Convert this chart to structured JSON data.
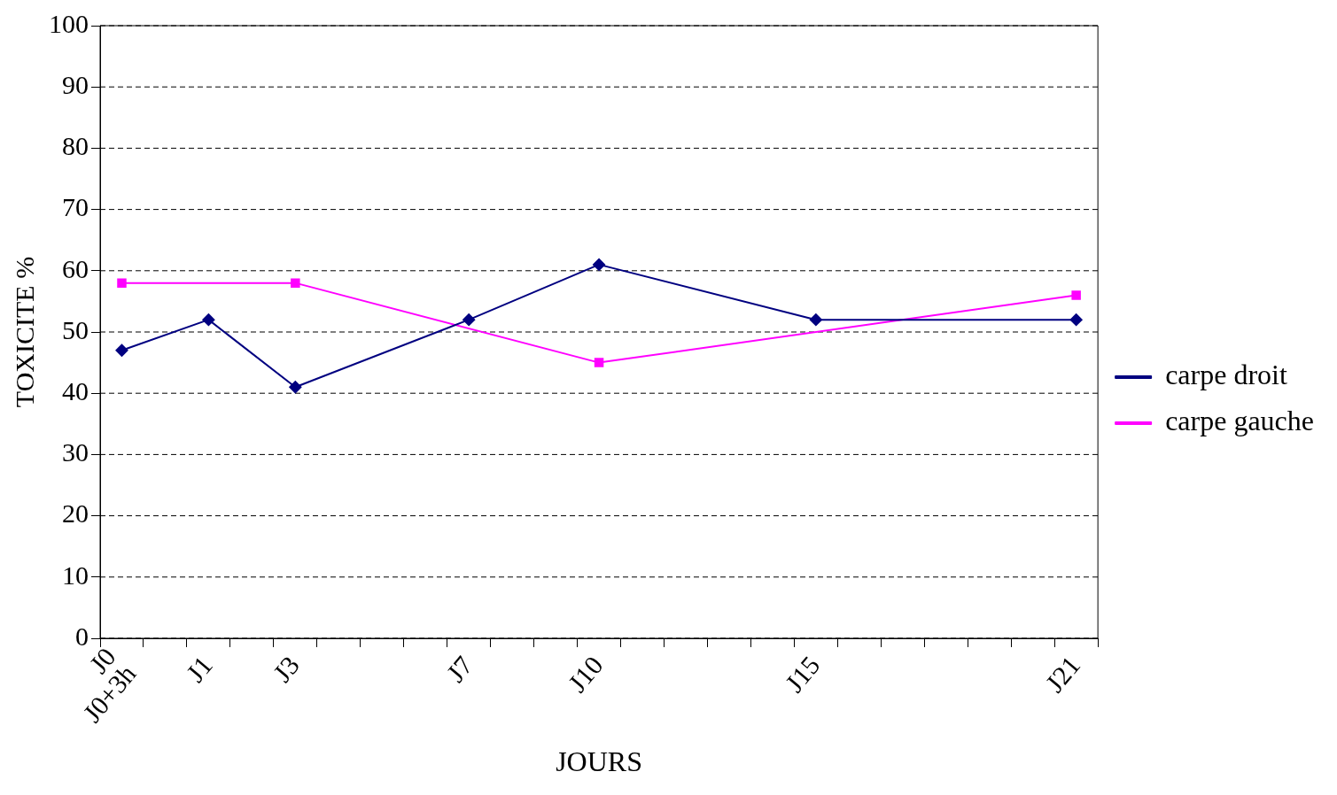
{
  "chart_data": {
    "type": "line",
    "xlabel": "JOURS",
    "ylabel": "TOXICITE %",
    "categories": [
      "J0\nJ0+3h",
      null,
      "J1",
      null,
      "J3",
      null,
      null,
      null,
      "J7",
      null,
      null,
      "J10",
      null,
      null,
      null,
      null,
      "J15",
      null,
      null,
      null,
      null,
      null,
      "J21"
    ],
    "series": [
      {
        "name": "carpe droit",
        "color": "#000080",
        "marker": "diamond",
        "values": [
          47,
          null,
          52,
          null,
          41,
          null,
          null,
          null,
          52,
          null,
          null,
          61,
          null,
          null,
          null,
          null,
          52,
          null,
          null,
          null,
          null,
          null,
          52
        ]
      },
      {
        "name": "carpe gauche",
        "color": "#ff00ff",
        "marker": "square",
        "values": [
          58,
          null,
          null,
          null,
          58,
          null,
          null,
          null,
          null,
          null,
          null,
          45,
          null,
          null,
          null,
          null,
          null,
          null,
          null,
          null,
          null,
          null,
          56
        ]
      }
    ],
    "ylim": [
      0,
      100
    ],
    "yticks": [
      0,
      10,
      20,
      30,
      40,
      50,
      60,
      70,
      80,
      90,
      100
    ],
    "grid": "y",
    "legend": "right"
  }
}
